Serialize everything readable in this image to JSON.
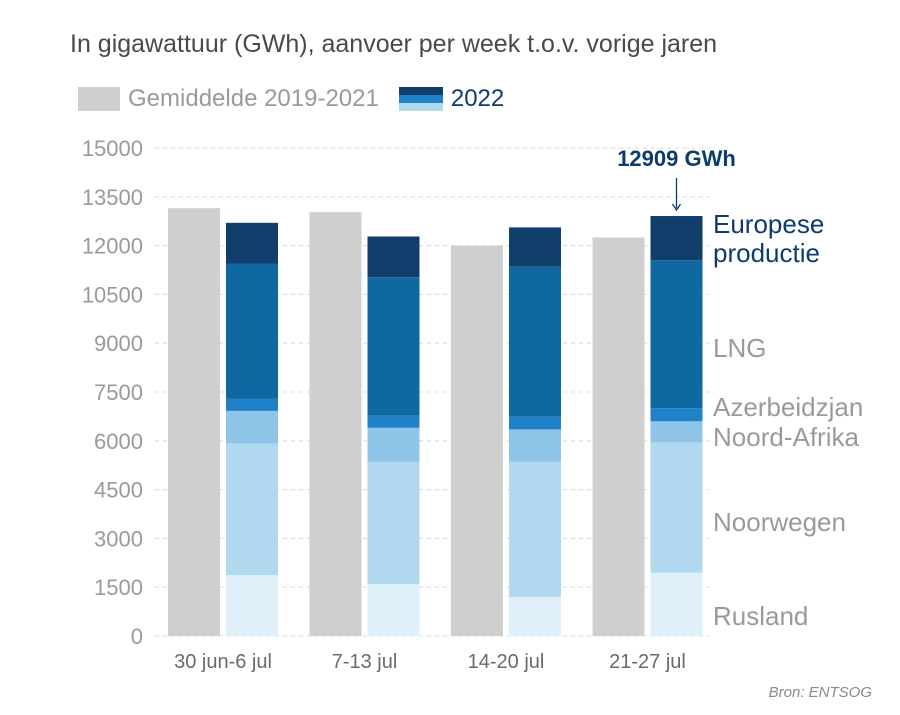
{
  "title": "In gigawattuur (GWh), aanvoer per week t.o.v. vorige jaren",
  "legend": {
    "average": "Gemiddelde 2019-2021",
    "current": "2022"
  },
  "source": "Bron: ENTSOG",
  "colors": {
    "average": "#cfcfcf",
    "Rusland": "#dff0fa",
    "Noorwegen": "#b0d8ee",
    "Noord-Afrika": "#8ec5e8",
    "Azerbeidzjan": "#1f82c9",
    "LNG": "#0f689f",
    "Europese productie": "#123e6c"
  },
  "chart_data": {
    "type": "bar",
    "stacked": true,
    "categories": [
      "30 jun-6 jul",
      "7-13 jul",
      "14-20 jul",
      "21-27 jul"
    ],
    "ylim": [
      0,
      15000
    ],
    "yticks": [
      0,
      1500,
      3000,
      4500,
      6000,
      7500,
      9000,
      10500,
      12000,
      13500,
      15000
    ],
    "average": {
      "name": "Gemiddelde 2019-2021",
      "values": [
        13150,
        13030,
        12000,
        12250
      ]
    },
    "series": [
      {
        "name": "Rusland",
        "values": [
          1870,
          1600,
          1200,
          1950
        ]
      },
      {
        "name": "Noorwegen",
        "values": [
          4050,
          3750,
          4150,
          4000
        ]
      },
      {
        "name": "Noord-Afrika",
        "values": [
          1000,
          1050,
          1000,
          650
        ]
      },
      {
        "name": "Azerbeidzjan",
        "values": [
          380,
          380,
          400,
          400
        ]
      },
      {
        "name": "LNG",
        "values": [
          4150,
          4250,
          4600,
          4550
        ]
      },
      {
        "name": "Europese productie",
        "values": [
          1250,
          1250,
          1210,
          1359
        ]
      }
    ],
    "annotation": {
      "text": "12909 GWh",
      "category": "21-27 jul",
      "value": 12909
    },
    "series_labels": [
      "Europese productie",
      "LNG",
      "Azerbeidzjan",
      "Noord-Afrika",
      "Noorwegen",
      "Rusland"
    ],
    "grid": true
  }
}
